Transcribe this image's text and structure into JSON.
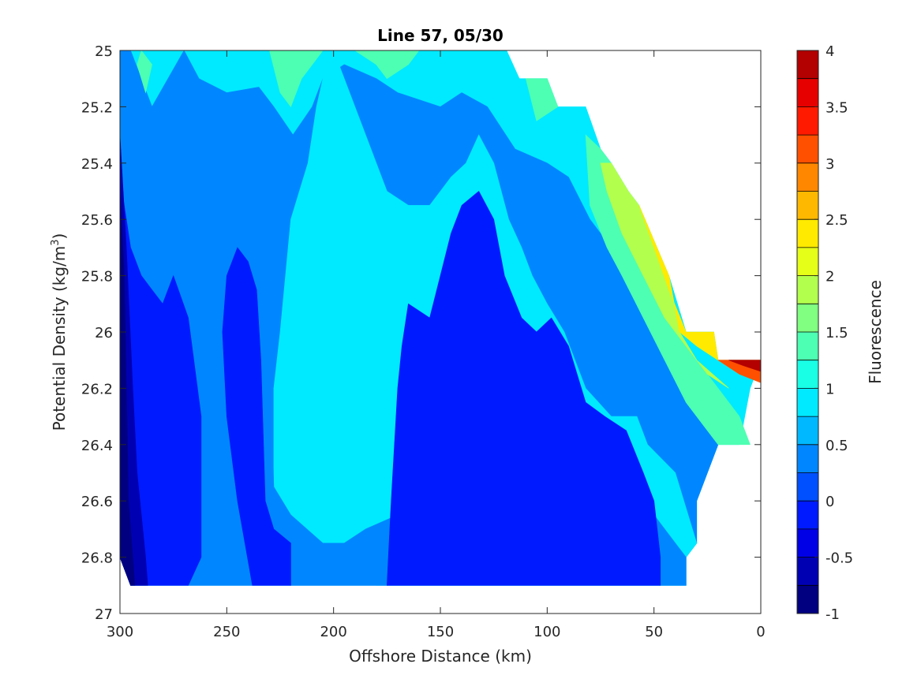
{
  "chart_data": {
    "type": "heatmap",
    "subtype": "filled-contour",
    "title": "Line 57, 05/30",
    "xlabel": "Offshore Distance (km)",
    "ylabel_prefix": "Potential Density (kg/m",
    "ylabel_sup": "3",
    "ylabel_suffix": ")",
    "colorbar_label": "Fluorescence",
    "x_reversed": true,
    "y_reversed": true,
    "xlim": [
      300,
      0
    ],
    "ylim": [
      25,
      27
    ],
    "xticks": [
      300,
      250,
      200,
      150,
      100,
      50,
      0
    ],
    "yticks": [
      25,
      25.2,
      25.4,
      25.6,
      25.8,
      26,
      26.2,
      26.4,
      26.6,
      26.8,
      27
    ],
    "xtick_labels": [
      "300",
      "250",
      "200",
      "150",
      "100",
      "50",
      "0"
    ],
    "ytick_labels": [
      "25",
      "25.2",
      "25.4",
      "25.6",
      "25.8",
      "26",
      "26.2",
      "26.4",
      "26.6",
      "26.8",
      "27"
    ],
    "colorbar_range": [
      -1,
      4
    ],
    "colorbar_ticks": [
      4,
      3.5,
      3,
      2.5,
      2,
      1.5,
      1,
      0.5,
      0,
      -0.5,
      -1
    ],
    "colorbar_tick_labels": [
      "4",
      "3.5",
      "3",
      "2.5",
      "2",
      "1.5",
      "1",
      "0.5",
      "0",
      "-0.5",
      "-1"
    ],
    "colormap": "jet",
    "level_colors": [
      "#000080",
      "#0000b3",
      "#0000e6",
      "#001aff",
      "#0050ff",
      "#0087ff",
      "#00b8ff",
      "#00eaff",
      "#19ffe6",
      "#4dffb2",
      "#80ff80",
      "#b3ff4d",
      "#e6ff19",
      "#ffea00",
      "#ffb800",
      "#ff8700",
      "#ff5000",
      "#ff1a00",
      "#e60000",
      "#b30000"
    ],
    "data_extent_outline": [
      [
        300,
        25.0
      ],
      [
        119,
        25.0
      ],
      [
        113,
        25.1
      ],
      [
        100,
        25.1
      ],
      [
        95,
        25.2
      ],
      [
        82,
        25.2
      ],
      [
        75,
        25.35
      ],
      [
        70,
        25.4
      ],
      [
        62,
        25.5
      ],
      [
        57,
        25.55
      ],
      [
        43,
        25.8
      ],
      [
        35,
        26.0
      ],
      [
        22,
        26.0
      ],
      [
        20,
        26.1
      ],
      [
        0,
        26.1
      ],
      [
        5,
        26.2
      ],
      [
        10,
        26.4
      ],
      [
        20,
        26.4
      ],
      [
        30,
        26.6
      ],
      [
        30,
        26.75
      ],
      [
        35,
        26.8
      ],
      [
        35,
        26.9
      ],
      [
        295,
        26.9
      ],
      [
        300,
        26.8
      ]
    ],
    "regions": [
      {
        "level": 0.75,
        "outline": [
          [
            300,
            25.0
          ],
          [
            119,
            25.0
          ],
          [
            113,
            25.1
          ],
          [
            100,
            25.1
          ],
          [
            95,
            25.2
          ],
          [
            82,
            25.2
          ],
          [
            75,
            25.35
          ],
          [
            70,
            25.4
          ],
          [
            62,
            25.5
          ],
          [
            57,
            25.55
          ],
          [
            43,
            25.8
          ],
          [
            35,
            26.0
          ],
          [
            22,
            26.0
          ],
          [
            20,
            26.1
          ],
          [
            0,
            26.1
          ],
          [
            5,
            26.2
          ],
          [
            10,
            26.4
          ],
          [
            20,
            26.4
          ],
          [
            30,
            26.6
          ],
          [
            30,
            26.75
          ],
          [
            35,
            26.8
          ],
          [
            35,
            26.9
          ],
          [
            295,
            26.9
          ],
          [
            300,
            26.8
          ]
        ]
      },
      {
        "level": 0.25,
        "outline": [
          [
            300,
            25.0
          ],
          [
            295,
            25.0
          ],
          [
            285,
            25.2
          ],
          [
            270,
            25.0
          ],
          [
            263,
            25.1
          ],
          [
            250,
            25.15
          ],
          [
            235,
            25.13
          ],
          [
            228,
            25.2
          ],
          [
            219,
            25.3
          ],
          [
            210,
            25.2
          ],
          [
            205,
            25.1
          ],
          [
            195,
            25.05
          ],
          [
            180,
            25.1
          ],
          [
            170,
            25.15
          ],
          [
            150,
            25.2
          ],
          [
            140,
            25.15
          ],
          [
            128,
            25.2
          ],
          [
            115,
            25.35
          ],
          [
            100,
            25.4
          ],
          [
            90,
            25.45
          ],
          [
            80,
            25.6
          ],
          [
            70,
            25.7
          ],
          [
            60,
            25.8
          ],
          [
            50,
            26.0
          ],
          [
            40,
            26.1
          ],
          [
            35,
            26.2
          ],
          [
            25,
            26.35
          ],
          [
            20,
            26.4
          ],
          [
            30,
            26.6
          ],
          [
            30,
            26.75
          ],
          [
            35,
            26.8
          ],
          [
            35,
            26.9
          ],
          [
            295,
            26.9
          ],
          [
            300,
            26.8
          ]
        ]
      },
      {
        "level": 0.75,
        "outline": [
          [
            215,
            25.0
          ],
          [
            200,
            25.0
          ],
          [
            185,
            25.3
          ],
          [
            175,
            25.5
          ],
          [
            165,
            25.55
          ],
          [
            155,
            25.55
          ],
          [
            150,
            25.5
          ],
          [
            145,
            25.45
          ],
          [
            138,
            25.4
          ],
          [
            132,
            25.3
          ],
          [
            125,
            25.4
          ],
          [
            118,
            25.6
          ],
          [
            112,
            25.7
          ],
          [
            107,
            25.8
          ],
          [
            100,
            25.9
          ],
          [
            92,
            26.0
          ],
          [
            82,
            26.2
          ],
          [
            70,
            26.3
          ],
          [
            58,
            26.3
          ],
          [
            53,
            26.4
          ],
          [
            40,
            26.5
          ],
          [
            30,
            26.75
          ],
          [
            35,
            26.8
          ],
          [
            35,
            26.9
          ],
          [
            180,
            26.9
          ],
          [
            190,
            26.85
          ],
          [
            200,
            26.9
          ],
          [
            215,
            26.8
          ],
          [
            220,
            26.65
          ],
          [
            228,
            26.55
          ],
          [
            228,
            26.2
          ],
          [
            225,
            26.0
          ],
          [
            220,
            25.6
          ],
          [
            212,
            25.4
          ],
          [
            208,
            25.2
          ],
          [
            205,
            25.1
          ]
        ]
      },
      {
        "level": 0.25,
        "outline": [
          [
            300,
            25.3
          ],
          [
            290,
            25.4
          ],
          [
            285,
            25.55
          ],
          [
            275,
            25.45
          ],
          [
            263,
            25.35
          ],
          [
            250,
            25.4
          ],
          [
            240,
            25.3
          ],
          [
            235,
            25.5
          ],
          [
            230,
            26.0
          ],
          [
            228,
            26.55
          ],
          [
            220,
            26.65
          ],
          [
            205,
            26.75
          ],
          [
            195,
            26.75
          ],
          [
            185,
            26.7
          ],
          [
            170,
            26.65
          ],
          [
            162,
            26.45
          ],
          [
            157,
            26.1
          ],
          [
            148,
            25.8
          ],
          [
            142,
            25.6
          ],
          [
            130,
            25.6
          ],
          [
            122,
            25.8
          ],
          [
            110,
            26.0
          ],
          [
            102,
            26.1
          ],
          [
            90,
            26.2
          ],
          [
            82,
            26.3
          ],
          [
            70,
            26.4
          ],
          [
            58,
            26.55
          ],
          [
            50,
            26.65
          ],
          [
            40,
            26.75
          ],
          [
            35,
            26.8
          ],
          [
            35,
            26.9
          ],
          [
            295,
            26.9
          ],
          [
            300,
            26.8
          ]
        ]
      },
      {
        "level": -0.25,
        "outline": [
          [
            300,
            25.45
          ],
          [
            295,
            25.7
          ],
          [
            290,
            25.8
          ],
          [
            285,
            25.85
          ],
          [
            280,
            25.9
          ],
          [
            275,
            25.8
          ],
          [
            268,
            25.95
          ],
          [
            262,
            26.3
          ],
          [
            262,
            26.8
          ],
          [
            268,
            26.9
          ],
          [
            295,
            26.9
          ],
          [
            300,
            26.8
          ]
        ]
      },
      {
        "level": -0.25,
        "outline": [
          [
            245,
            25.7
          ],
          [
            240,
            25.75
          ],
          [
            236,
            25.85
          ],
          [
            234,
            26.1
          ],
          [
            232,
            26.6
          ],
          [
            228,
            26.7
          ],
          [
            220,
            26.75
          ],
          [
            220,
            26.9
          ],
          [
            238,
            26.9
          ],
          [
            245,
            26.6
          ],
          [
            250,
            26.3
          ],
          [
            252,
            26.0
          ],
          [
            250,
            25.8
          ]
        ]
      },
      {
        "level": -0.25,
        "outline": [
          [
            175,
            26.9
          ],
          [
            173,
            26.6
          ],
          [
            170,
            26.2
          ],
          [
            168,
            26.05
          ],
          [
            165,
            25.9
          ],
          [
            155,
            25.95
          ],
          [
            150,
            25.8
          ],
          [
            145,
            25.65
          ],
          [
            140,
            25.55
          ],
          [
            132,
            25.5
          ],
          [
            125,
            25.6
          ],
          [
            120,
            25.8
          ],
          [
            112,
            25.95
          ],
          [
            105,
            26.0
          ],
          [
            98,
            25.95
          ],
          [
            90,
            26.05
          ],
          [
            82,
            26.25
          ],
          [
            73,
            26.3
          ],
          [
            63,
            26.35
          ],
          [
            55,
            26.5
          ],
          [
            50,
            26.6
          ],
          [
            47,
            26.8
          ],
          [
            47,
            26.9
          ]
        ]
      },
      {
        "level": -0.75,
        "outline": [
          [
            300,
            25.3
          ],
          [
            297,
            25.7
          ],
          [
            294,
            26.2
          ],
          [
            292,
            26.5
          ],
          [
            288,
            26.8
          ],
          [
            287,
            26.9
          ],
          [
            295,
            26.9
          ],
          [
            300,
            26.8
          ]
        ]
      },
      {
        "level": -1.0,
        "outline": [
          [
            300,
            25.5
          ],
          [
            298,
            25.8
          ],
          [
            297,
            26.2
          ],
          [
            296,
            26.6
          ],
          [
            293,
            26.9
          ],
          [
            295,
            26.9
          ],
          [
            300,
            26.8
          ]
        ]
      },
      {
        "level": 1.25,
        "outline": [
          [
            290,
            25.0
          ],
          [
            285,
            25.05
          ],
          [
            288,
            25.15
          ],
          [
            292,
            25.05
          ]
        ]
      },
      {
        "level": 1.25,
        "outline": [
          [
            230,
            25.0
          ],
          [
            225,
            25.15
          ],
          [
            220,
            25.2
          ],
          [
            215,
            25.1
          ],
          [
            210,
            25.05
          ],
          [
            205,
            25.0
          ]
        ]
      },
      {
        "level": 1.25,
        "outline": [
          [
            190,
            25.0
          ],
          [
            180,
            25.05
          ],
          [
            175,
            25.1
          ],
          [
            165,
            25.05
          ],
          [
            160,
            25.0
          ]
        ]
      },
      {
        "level": 1.25,
        "outline": [
          [
            110,
            25.1
          ],
          [
            100,
            25.1
          ],
          [
            95,
            25.2
          ],
          [
            105,
            25.25
          ]
        ]
      },
      {
        "level": 1.25,
        "outline": [
          [
            82,
            25.3
          ],
          [
            75,
            25.35
          ],
          [
            70,
            25.4
          ],
          [
            62,
            25.5
          ],
          [
            57,
            25.55
          ],
          [
            43,
            25.8
          ],
          [
            38,
            26.0
          ],
          [
            30,
            26.1
          ],
          [
            20,
            26.2
          ],
          [
            10,
            26.3
          ],
          [
            5,
            26.4
          ],
          [
            20,
            26.4
          ],
          [
            25,
            26.35
          ],
          [
            35,
            26.25
          ],
          [
            45,
            26.1
          ],
          [
            55,
            25.95
          ],
          [
            65,
            25.8
          ],
          [
            72,
            25.7
          ],
          [
            80,
            25.55
          ]
        ]
      },
      {
        "level": 1.75,
        "outline": [
          [
            75,
            25.4
          ],
          [
            70,
            25.4
          ],
          [
            62,
            25.5
          ],
          [
            57,
            25.55
          ],
          [
            43,
            25.8
          ],
          [
            38,
            26.0
          ],
          [
            30,
            26.1
          ],
          [
            15,
            26.2
          ],
          [
            25,
            26.15
          ],
          [
            35,
            26.05
          ],
          [
            45,
            25.95
          ],
          [
            55,
            25.8
          ],
          [
            65,
            25.65
          ],
          [
            72,
            25.5
          ]
        ]
      },
      {
        "level": 2.25,
        "outline": [
          [
            57,
            25.55
          ],
          [
            43,
            25.8
          ],
          [
            38,
            26.0
          ],
          [
            30,
            26.05
          ],
          [
            20,
            26.1
          ],
          [
            10,
            26.15
          ],
          [
            0,
            26.15
          ],
          [
            0,
            26.1
          ],
          [
            20,
            26.1
          ],
          [
            22,
            26.0
          ],
          [
            35,
            26.0
          ],
          [
            43,
            25.85
          ],
          [
            50,
            25.7
          ]
        ]
      },
      {
        "level": 3.0,
        "outline": [
          [
            20,
            26.1
          ],
          [
            0,
            26.1
          ],
          [
            0,
            26.18
          ],
          [
            10,
            26.15
          ]
        ]
      },
      {
        "level": 3.75,
        "outline": [
          [
            15,
            26.1
          ],
          [
            0,
            26.1
          ],
          [
            0,
            26.14
          ],
          [
            8,
            26.12
          ]
        ]
      }
    ]
  }
}
